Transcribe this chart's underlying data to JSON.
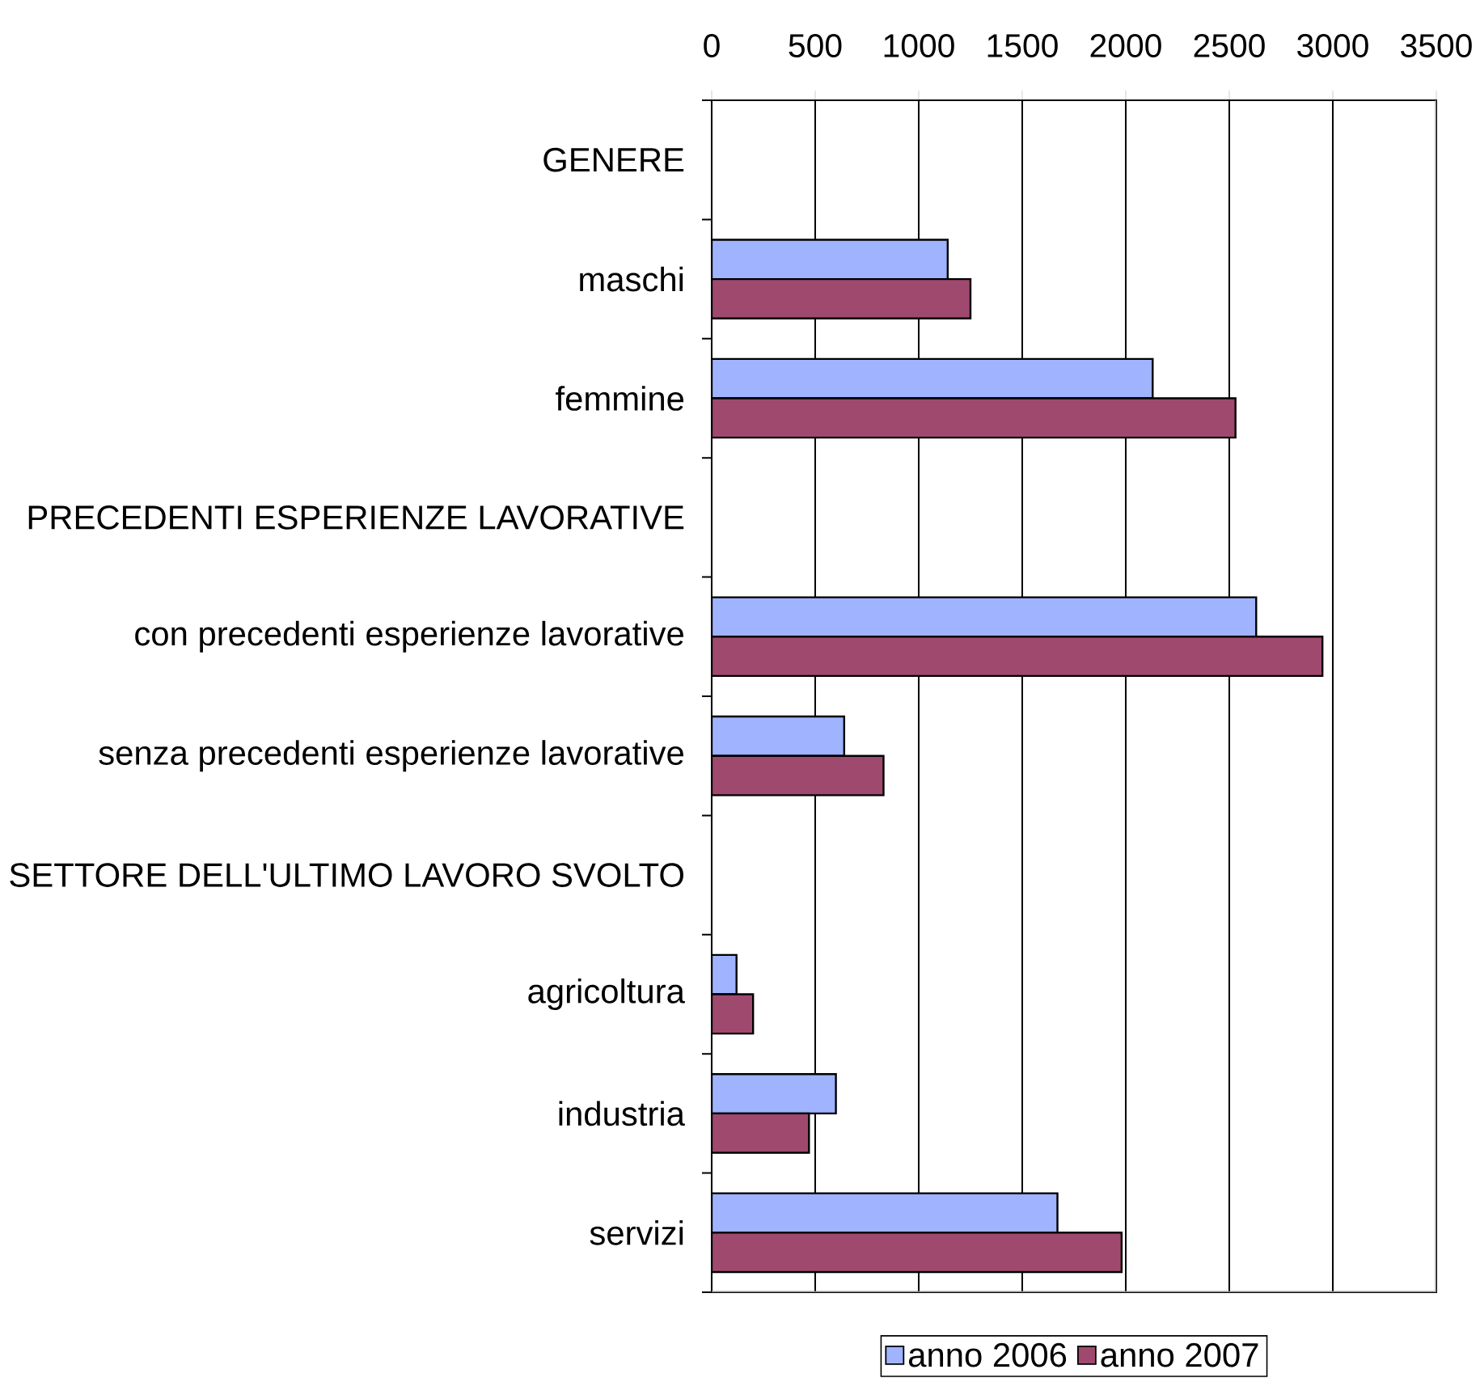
{
  "chart_data": {
    "type": "bar",
    "orientation": "horizontal",
    "categories": [
      "GENERE",
      "maschi",
      "femmine",
      "PRECEDENTI ESPERIENZE LAVORATIVE",
      "con precedenti esperienze lavorative",
      "senza precedenti esperienze lavorative",
      "SETTORE DELL'ULTIMO LAVORO SVOLTO",
      "agricoltura",
      "industria",
      "servizi"
    ],
    "series": [
      {
        "name": "anno 2006",
        "color": "#9fb3ff",
        "values": [
          null,
          1140,
          2130,
          null,
          2630,
          640,
          null,
          120,
          600,
          1670
        ]
      },
      {
        "name": "anno 2007",
        "color": "#a0496f",
        "values": [
          null,
          1250,
          2530,
          null,
          2950,
          830,
          null,
          200,
          470,
          1980
        ]
      }
    ],
    "xlim": [
      0,
      3500
    ],
    "xticks": [
      0,
      500,
      1000,
      1500,
      2000,
      2500,
      3000,
      3500
    ],
    "grid": "x",
    "legend": "bottom"
  }
}
